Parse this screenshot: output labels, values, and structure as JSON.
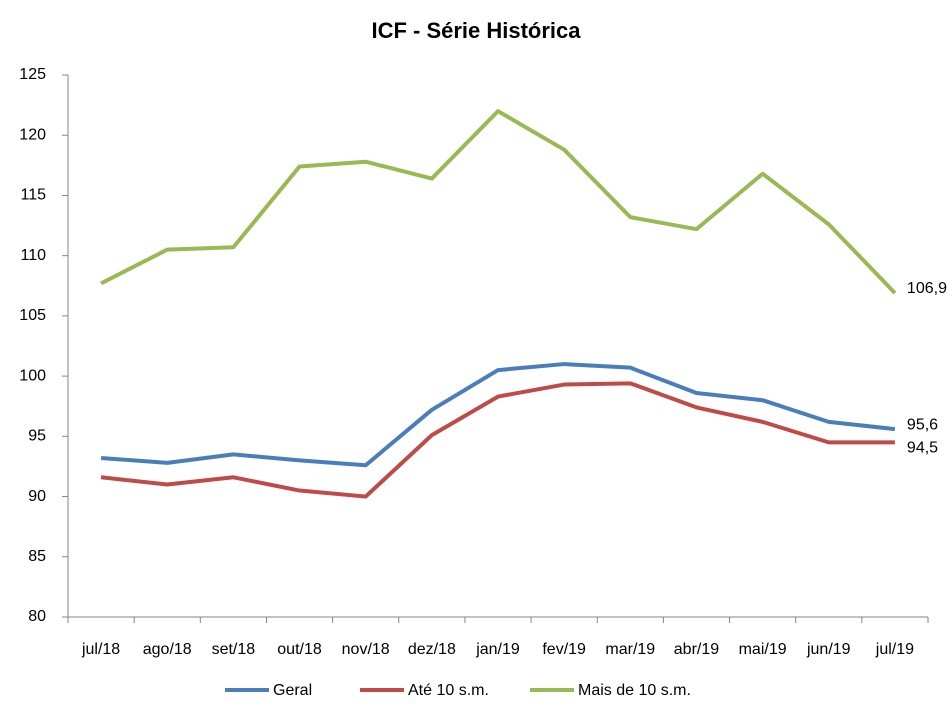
{
  "chart_data": {
    "type": "line",
    "title": "ICF - Série Histórica",
    "categories": [
      "jul/18",
      "ago/18",
      "set/18",
      "out/18",
      "nov/18",
      "dez/18",
      "jan/19",
      "fev/19",
      "mar/19",
      "abr/19",
      "mai/19",
      "jun/19",
      "jul/19"
    ],
    "series": [
      {
        "name": "Geral",
        "color": "#4a7ebb",
        "values": [
          93.2,
          92.8,
          93.5,
          93.0,
          92.6,
          97.2,
          100.5,
          101.0,
          100.7,
          98.6,
          98.0,
          96.2,
          95.6
        ],
        "value_labels": [
          null,
          null,
          null,
          null,
          null,
          null,
          null,
          null,
          null,
          null,
          null,
          null,
          "95,6"
        ]
      },
      {
        "name": "Até 10 s.m.",
        "color": "#be4b48",
        "values": [
          91.6,
          91.0,
          91.6,
          90.5,
          90.0,
          95.1,
          98.3,
          99.3,
          99.4,
          97.4,
          96.2,
          94.5,
          94.5
        ],
        "value_labels": [
          null,
          null,
          null,
          null,
          null,
          null,
          null,
          null,
          null,
          null,
          null,
          null,
          "94,5"
        ]
      },
      {
        "name": "Mais de 10 s.m.",
        "color": "#98b954",
        "values": [
          107.7,
          110.5,
          110.7,
          117.4,
          117.8,
          116.4,
          122.0,
          118.8,
          113.2,
          112.2,
          116.8,
          112.6,
          106.9
        ],
        "value_labels": [
          null,
          null,
          null,
          null,
          null,
          null,
          null,
          null,
          null,
          null,
          null,
          null,
          "106,9"
        ]
      }
    ],
    "ylim": [
      80,
      125
    ],
    "yticks": [
      80,
      85,
      90,
      95,
      100,
      105,
      110,
      115,
      120,
      125
    ],
    "grid": false,
    "legend": "bottom"
  }
}
